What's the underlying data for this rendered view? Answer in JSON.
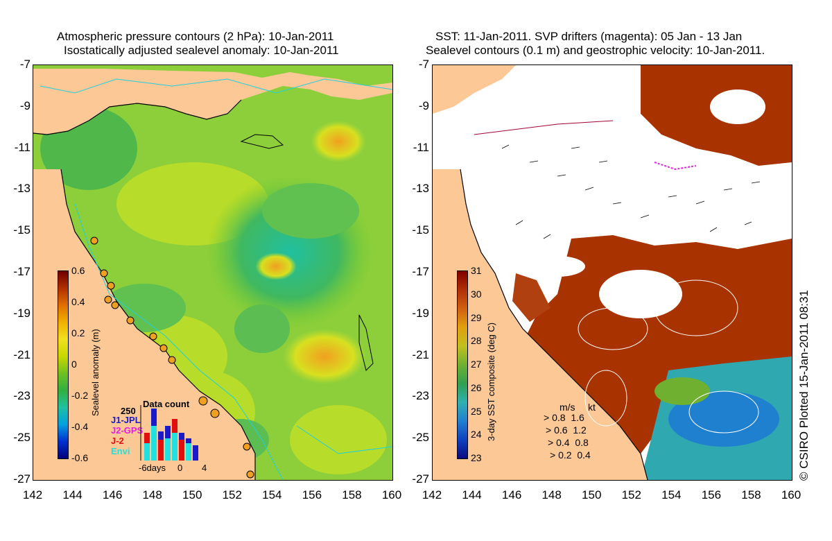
{
  "left_panel": {
    "title_line1": "Atmospheric pressure contours (2 hPa): 10-Jan-2011",
    "title_line2": "Isostatically adjusted sealevel anomaly: 10-Jan-2011",
    "colorbar": {
      "label": "Sealevel anomaly (m)",
      "ticks": [
        "0.6",
        "0.4",
        "0.2",
        "0",
        "-0.2",
        "-0.4",
        "-0.6"
      ],
      "colors": [
        "#00007a",
        "#0030d0",
        "#00a0e0",
        "#20c0a0",
        "#30b040",
        "#70c020",
        "#c8d800",
        "#f0e020",
        "#f0b000",
        "#e07000",
        "#b03000",
        "#700000"
      ]
    },
    "data_count": {
      "title": "Data count",
      "max_label": "250",
      "x_labels": [
        "-6days",
        "0",
        "4"
      ],
      "series": [
        {
          "name": "J1-JPL",
          "color": "#1a1ac8"
        },
        {
          "name": "J2-GPS",
          "color": "#e020e0"
        },
        {
          "name": "J-2",
          "color": "#e01010"
        },
        {
          "name": "Envi",
          "color": "#20e0e0"
        }
      ]
    }
  },
  "right_panel": {
    "title_line1": "SST: 11-Jan-2011. SVP drifters (magenta): 05 Jan - 13 Jan",
    "title_line2": "Sealevel contours (0.1 m) and geostrophic velocity: 10-Jan-2011.",
    "colorbar": {
      "label": "3-day SST composite (deg C)",
      "ticks": [
        "31",
        "30",
        "29",
        "28",
        "27",
        "26",
        "25",
        "24",
        "23"
      ],
      "colors": [
        "#0a0a80",
        "#1040c0",
        "#2080d0",
        "#30b0b0",
        "#30a050",
        "#70b030",
        "#c0c020",
        "#e0a010",
        "#d06010",
        "#b03008",
        "#800000"
      ]
    },
    "velocity_legend": {
      "header_ms": "m/s",
      "header_kt": "kt",
      "rows": [
        {
          "ms": "0.8",
          "kt": "1.6"
        },
        {
          "ms": "0.6",
          "kt": "1.2"
        },
        {
          "ms": "0.4",
          "kt": "0.8"
        },
        {
          "ms": "0.2",
          "kt": "0.4"
        }
      ]
    }
  },
  "axes": {
    "y_ticks": [
      "-7",
      "-9",
      "-11",
      "-13",
      "-15",
      "-17",
      "-19",
      "-21",
      "-23",
      "-25",
      "-27"
    ],
    "x_ticks": [
      "142",
      "144",
      "146",
      "148",
      "150",
      "152",
      "154",
      "156",
      "158",
      "160"
    ]
  },
  "copyright": "© CSIRO Plotted 15-Jan-2011 08:31",
  "colors": {
    "land": "#fbc896",
    "ocean_base": "#9bd23c",
    "cloud": "#ffffff",
    "warm_sst": "#a83200"
  }
}
